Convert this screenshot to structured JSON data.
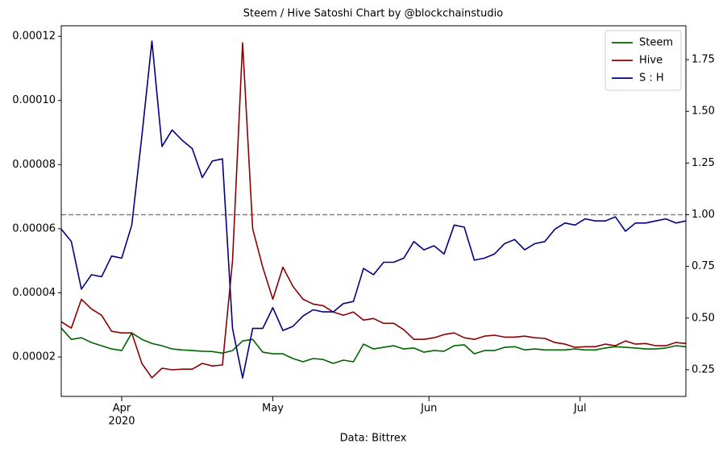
{
  "chart_data": {
    "type": "line",
    "title": "Steem / Hive Satoshi Chart by @blockchainstudio",
    "xlabel": "Data: Bittrex",
    "xticks": [
      {
        "value": 6,
        "label": "Apr"
      },
      {
        "value": 21,
        "label": "May"
      },
      {
        "value": 36.5,
        "label": "Jun"
      },
      {
        "value": 51.5,
        "label": "Jul"
      }
    ],
    "year_label": "2020",
    "xlim": [
      0,
      62
    ],
    "ylim": [
      7.7e-06,
      0.0001233
    ],
    "yticks": [
      2e-05,
      4e-05,
      6e-05,
      8e-05,
      {
        "value": 0.0001,
        "label": "0.00010"
      },
      0.00012
    ],
    "y2lim": [
      0.121,
      1.914
    ],
    "y2ticks": [
      0.25,
      {
        "value": 0.5,
        "label": "0.50"
      },
      0.75,
      {
        "value": 1,
        "label": "1.00"
      },
      1.25,
      {
        "value": 1.5,
        "label": "1.50"
      },
      1.75
    ],
    "reference_line": {
      "value": 1,
      "axis": "y2",
      "color": "#808080"
    },
    "legend": "upper right",
    "series": [
      {
        "name": "Steem",
        "color": "#006400",
        "values": [
          2.9e-05,
          2.55e-05,
          2.6e-05,
          2.45e-05,
          2.35e-05,
          2.25e-05,
          2.2e-05,
          2.75e-05,
          2.55e-05,
          2.42e-05,
          2.35e-05,
          2.25e-05,
          2.22e-05,
          2.2e-05,
          2.18e-05,
          2.17e-05,
          2.12e-05,
          2.2e-05,
          2.5e-05,
          2.55e-05,
          2.15e-05,
          2.1e-05,
          2.1e-05,
          1.95e-05,
          1.85e-05,
          1.95e-05,
          1.92e-05,
          1.8e-05,
          1.9e-05,
          1.85e-05,
          2.4e-05,
          2.25e-05,
          2.3e-05,
          2.35e-05,
          2.25e-05,
          2.28e-05,
          2.15e-05,
          2.2e-05,
          2.18e-05,
          2.35e-05,
          2.38e-05,
          2.1e-05,
          2.2e-05,
          2.2e-05,
          2.3e-05,
          2.32e-05,
          2.22e-05,
          2.25e-05,
          2.22e-05,
          2.22e-05,
          2.22e-05,
          2.25e-05,
          2.22e-05,
          2.22e-05,
          2.28e-05,
          2.32e-05,
          2.3e-05,
          2.28e-05,
          2.25e-05,
          2.25e-05,
          2.28e-05,
          2.35e-05,
          2.32e-05
        ]
      },
      {
        "name": "Hive",
        "color": "#8b0000",
        "values": [
          3.1e-05,
          2.9e-05,
          3.8e-05,
          3.5e-05,
          3.3e-05,
          2.8e-05,
          2.75e-05,
          2.75e-05,
          1.8e-05,
          1.35e-05,
          1.65e-05,
          1.6e-05,
          1.62e-05,
          1.62e-05,
          1.8e-05,
          1.72e-05,
          1.75e-05,
          5e-05,
          0.000118,
          6e-05,
          4.8e-05,
          3.8e-05,
          4.8e-05,
          4.2e-05,
          3.8e-05,
          3.65e-05,
          3.6e-05,
          3.4e-05,
          3.3e-05,
          3.4e-05,
          3.15e-05,
          3.2e-05,
          3.05e-05,
          3.05e-05,
          2.85e-05,
          2.55e-05,
          2.55e-05,
          2.6e-05,
          2.7e-05,
          2.75e-05,
          2.6e-05,
          2.55e-05,
          2.65e-05,
          2.68e-05,
          2.62e-05,
          2.62e-05,
          2.65e-05,
          2.6e-05,
          2.58e-05,
          2.45e-05,
          2.4e-05,
          2.3e-05,
          2.32e-05,
          2.32e-05,
          2.4e-05,
          2.35e-05,
          2.5e-05,
          2.4e-05,
          2.42e-05,
          2.35e-05,
          2.35e-05,
          2.45e-05,
          2.42e-05
        ]
      },
      {
        "name": "S : H",
        "color": "#000080",
        "axis": "y2",
        "values": [
          0.93,
          0.87,
          0.64,
          0.71,
          0.7,
          0.8,
          0.79,
          0.95,
          1.38,
          1.84,
          1.33,
          1.41,
          1.36,
          1.32,
          1.18,
          1.26,
          1.27,
          0.45,
          0.21,
          0.45,
          0.45,
          0.55,
          0.44,
          0.46,
          0.51,
          0.54,
          0.53,
          0.53,
          0.57,
          0.58,
          0.74,
          0.71,
          0.77,
          0.77,
          0.79,
          0.87,
          0.83,
          0.85,
          0.81,
          0.95,
          0.94,
          0.78,
          0.79,
          0.81,
          0.86,
          0.88,
          0.83,
          0.86,
          0.87,
          0.93,
          0.96,
          0.95,
          0.98,
          0.97,
          0.97,
          0.99,
          0.92,
          0.96,
          0.96,
          0.97,
          0.98,
          0.96,
          0.97
        ]
      }
    ]
  }
}
